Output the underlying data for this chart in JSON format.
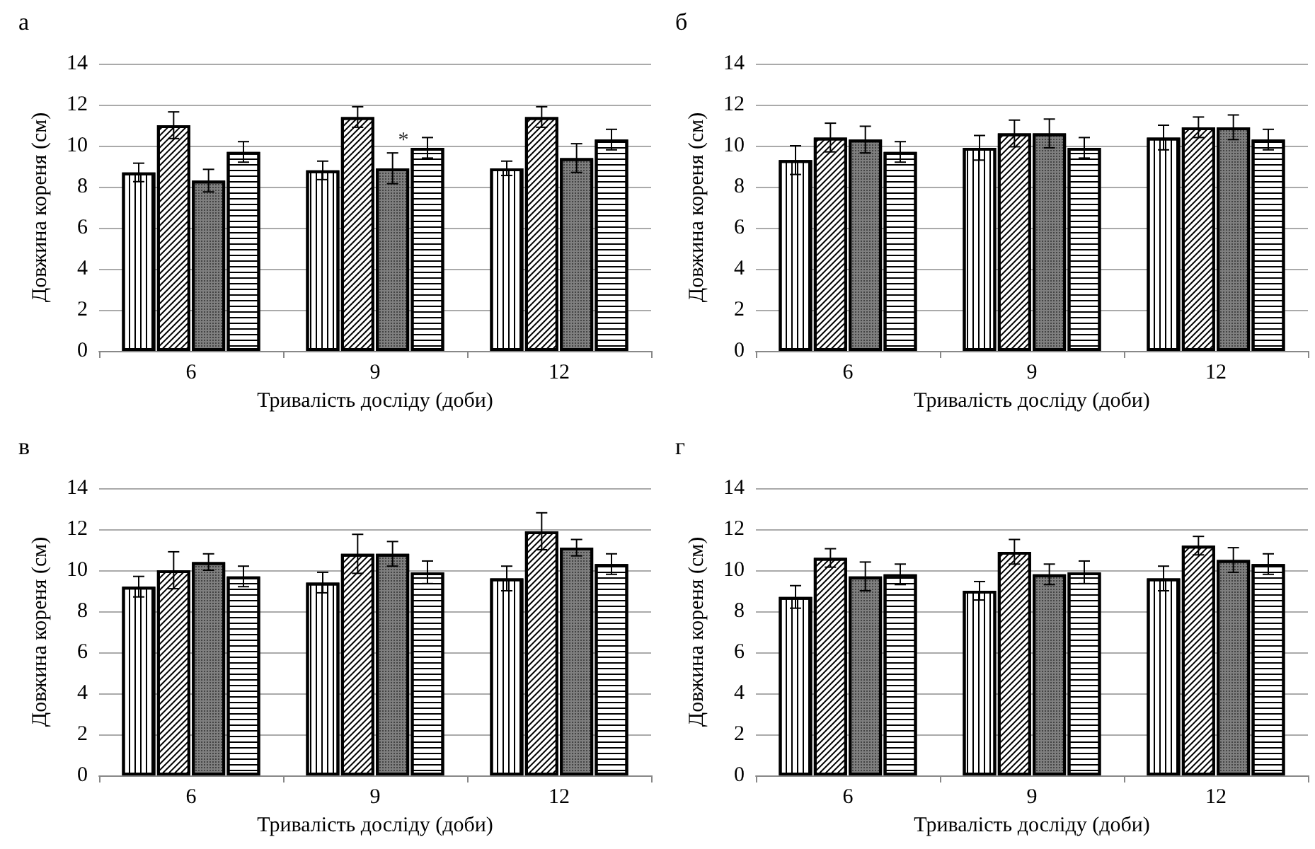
{
  "chart_data": [
    {
      "type": "bar",
      "title": "а",
      "xlabel": "Тривалість досліду (доби)",
      "ylabel": "Довжина кореня (см)",
      "categories": [
        "6",
        "9",
        "12"
      ],
      "ylim": [
        0,
        14
      ],
      "yticks": [
        0,
        2,
        4,
        6,
        8,
        10,
        12,
        14
      ],
      "grid": "y",
      "annotations": [
        {
          "text": "*",
          "x": "9",
          "y": 10.0
        }
      ],
      "series": [
        {
          "color": "#ffffff",
          "values": [
            8.7,
            8.8,
            8.9
          ],
          "errors": [
            0.45,
            0.45,
            0.35
          ]
        },
        {
          "color": "#ffffff",
          "values": [
            11.0,
            11.4,
            11.4
          ],
          "errors": [
            0.65,
            0.5,
            0.5
          ]
        },
        {
          "color": "#7f7f7f",
          "values": [
            8.3,
            8.9,
            9.4
          ],
          "errors": [
            0.55,
            0.75,
            0.7
          ]
        },
        {
          "color": "#ffffff",
          "values": [
            9.7,
            9.9,
            10.3
          ],
          "errors": [
            0.5,
            0.5,
            0.5
          ]
        }
      ]
    },
    {
      "type": "bar",
      "title": "б",
      "xlabel": "Тривалість досліду (доби)",
      "ylabel": "Довжина кореня (см)",
      "categories": [
        "6",
        "9",
        "12"
      ],
      "ylim": [
        0,
        14
      ],
      "yticks": [
        0,
        2,
        4,
        6,
        8,
        10,
        12,
        14
      ],
      "grid": "y",
      "series": [
        {
          "color": "#ffffff",
          "values": [
            9.3,
            9.9,
            10.4
          ],
          "errors": [
            0.7,
            0.6,
            0.6
          ]
        },
        {
          "color": "#ffffff",
          "values": [
            10.4,
            10.6,
            10.9
          ],
          "errors": [
            0.7,
            0.65,
            0.5
          ]
        },
        {
          "color": "#7f7f7f",
          "values": [
            10.3,
            10.6,
            10.9
          ],
          "errors": [
            0.65,
            0.7,
            0.6
          ]
        },
        {
          "color": "#ffffff",
          "values": [
            9.7,
            9.9,
            10.3
          ],
          "errors": [
            0.5,
            0.5,
            0.5
          ]
        }
      ]
    },
    {
      "type": "bar",
      "title": "в",
      "xlabel": "Тривалість досліду (доби)",
      "ylabel": "Довжина кореня (см)",
      "categories": [
        "6",
        "9",
        "12"
      ],
      "ylim": [
        0,
        14
      ],
      "yticks": [
        0,
        2,
        4,
        6,
        8,
        10,
        12,
        14
      ],
      "grid": "y",
      "series": [
        {
          "color": "#ffffff",
          "values": [
            9.2,
            9.4,
            9.6
          ],
          "errors": [
            0.5,
            0.5,
            0.6
          ]
        },
        {
          "color": "#ffffff",
          "values": [
            10.0,
            10.8,
            11.9
          ],
          "errors": [
            0.9,
            0.95,
            0.9
          ]
        },
        {
          "color": "#7f7f7f",
          "values": [
            10.4,
            10.8,
            11.1
          ],
          "errors": [
            0.4,
            0.6,
            0.4
          ]
        },
        {
          "color": "#ffffff",
          "values": [
            9.7,
            9.9,
            10.3
          ],
          "errors": [
            0.5,
            0.55,
            0.5
          ]
        }
      ]
    },
    {
      "type": "bar",
      "title": "г",
      "xlabel": "Тривалість досліду (доби)",
      "ylabel": "Довжина кореня (см)",
      "categories": [
        "6",
        "9",
        "12"
      ],
      "ylim": [
        0,
        14
      ],
      "yticks": [
        0,
        2,
        4,
        6,
        8,
        10,
        12,
        14
      ],
      "grid": "y",
      "series": [
        {
          "color": "#ffffff",
          "values": [
            8.7,
            9.0,
            9.6
          ],
          "errors": [
            0.55,
            0.45,
            0.6
          ]
        },
        {
          "color": "#ffffff",
          "values": [
            10.6,
            10.9,
            11.2
          ],
          "errors": [
            0.45,
            0.6,
            0.45
          ]
        },
        {
          "color": "#7f7f7f",
          "values": [
            9.7,
            9.8,
            10.5
          ],
          "errors": [
            0.7,
            0.5,
            0.6
          ]
        },
        {
          "color": "#ffffff",
          "values": [
            9.8,
            9.9,
            10.3
          ],
          "errors": [
            0.5,
            0.55,
            0.5
          ]
        }
      ]
    }
  ]
}
